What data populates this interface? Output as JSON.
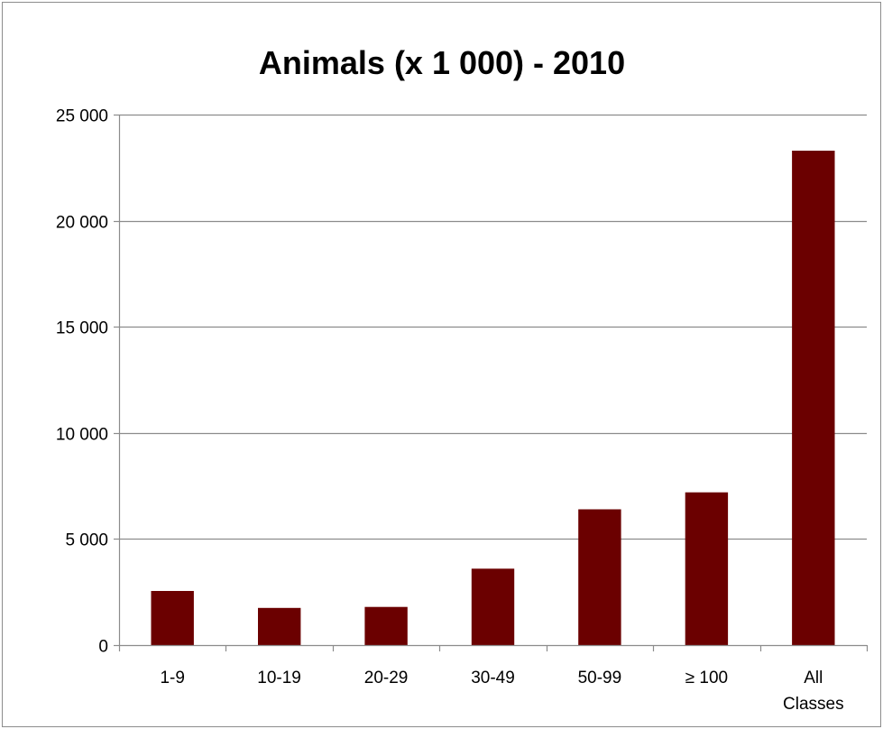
{
  "chart_data": {
    "type": "bar",
    "title": "Animals (x 1 000) - 2010",
    "xlabel": "",
    "ylabel": "",
    "categories": [
      "1-9",
      "10-19",
      "20-29",
      "30-49",
      "50-99",
      "≥ 100",
      "All Classes"
    ],
    "category_lines": [
      [
        "1-9"
      ],
      [
        "10-19"
      ],
      [
        "20-29"
      ],
      [
        "30-49"
      ],
      [
        "50-99"
      ],
      [
        "≥ 100"
      ],
      [
        "All",
        "Classes"
      ]
    ],
    "values": [
      2550,
      1750,
      1800,
      3600,
      6400,
      7200,
      23300
    ],
    "ylim": [
      0,
      25000
    ],
    "yticks": [
      0,
      5000,
      10000,
      15000,
      20000,
      25000
    ],
    "ytick_labels": [
      "0",
      "5 000",
      "10 000",
      "15 000",
      "20 000",
      "25 000"
    ],
    "grid": true,
    "legend": "none",
    "bar_color": "#6b0000",
    "grid_color": "#8c8c8c"
  }
}
